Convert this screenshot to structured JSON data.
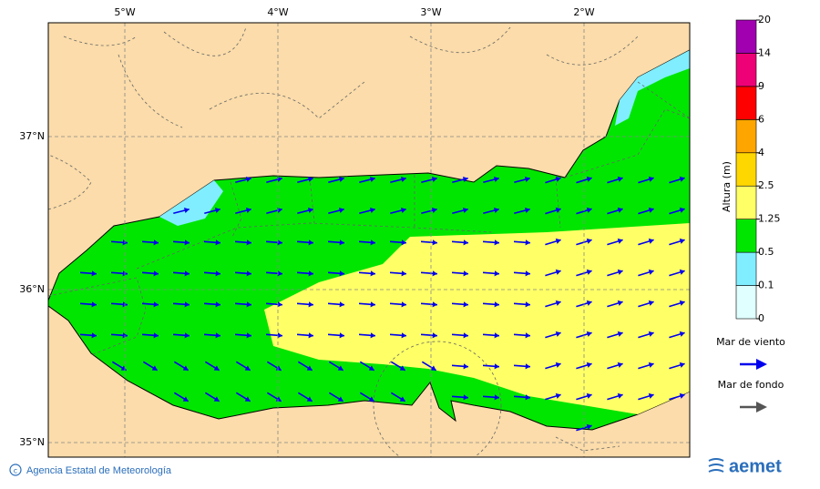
{
  "map": {
    "lon_labels": [
      "5°W",
      "4°W",
      "3°W",
      "2°W"
    ],
    "lat_labels": [
      "37°N",
      "36°N",
      "35°N"
    ],
    "colorbar": {
      "title": "Altura (m)",
      "levels": [
        0,
        0.1,
        0.5,
        1.25,
        2.5,
        4,
        6,
        9,
        14,
        20
      ],
      "colors": [
        "#e0ffff",
        "#80eeff",
        "#00e600",
        "#ffff66",
        "#ffd700",
        "#ffa500",
        "#ff0000",
        "#ee0077",
        "#a000b0"
      ]
    },
    "legend": [
      {
        "label": "Mar de viento",
        "color": "#0000ee"
      },
      {
        "label": "Mar de fondo",
        "color": "#555555"
      }
    ],
    "footer": {
      "credit": "Agencia Estatal de Meteorología",
      "logo": "aemet"
    }
  }
}
